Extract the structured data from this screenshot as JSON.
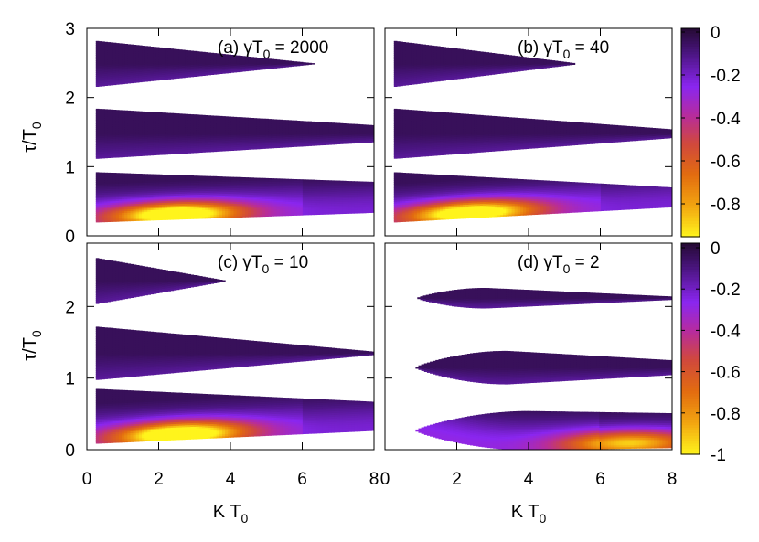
{
  "chart_data": [
    {
      "panel": "a",
      "type": "heatmap",
      "label_prefix": "(a) ",
      "label_symbol": "γT",
      "label_sub": "0",
      "label_suffix": " = 2000",
      "xlim": [
        0,
        8
      ],
      "ylim": [
        0,
        3
      ],
      "bands": [
        {
          "center": 2.49,
          "left_half": 0.33,
          "taper_end_x": 6.4,
          "fill_to_edge": false,
          "x_start": 0.25,
          "onset": "sharp"
        },
        {
          "center": 1.48,
          "left_half": 0.36,
          "right_half": 0.12,
          "fill_to_edge": true,
          "x_start": 0.25,
          "onset": "sharp"
        },
        {
          "center": 0.56,
          "left_half": 0.36,
          "right_half": 0.22,
          "fill_to_edge": true,
          "x_start": 0.25,
          "onset": "sharp",
          "hot_center_x": 2.5,
          "hot_min": -0.95
        }
      ]
    },
    {
      "panel": "b",
      "type": "heatmap",
      "label_prefix": "(b) ",
      "label_symbol": "γT",
      "label_sub": "0",
      "label_suffix": " = 40",
      "xlim": [
        0,
        8
      ],
      "ylim": [
        0,
        3
      ],
      "bands": [
        {
          "center": 2.49,
          "left_half": 0.33,
          "taper_end_x": 5.4,
          "fill_to_edge": false,
          "x_start": 0.25,
          "onset": "sharp"
        },
        {
          "center": 1.48,
          "left_half": 0.36,
          "right_half": 0.06,
          "fill_to_edge": true,
          "x_start": 0.25,
          "onset": "sharp"
        },
        {
          "center": 0.56,
          "left_half": 0.36,
          "right_half": 0.14,
          "fill_to_edge": true,
          "x_start": 0.25,
          "onset": "sharp",
          "hot_center_x": 2.4,
          "hot_min": -0.93
        }
      ]
    },
    {
      "panel": "c",
      "type": "heatmap",
      "label_prefix": "(c) ",
      "label_symbol": "γT",
      "label_sub": "0",
      "label_suffix": " = 10",
      "xlim": [
        0,
        8
      ],
      "ylim": [
        0,
        3
      ],
      "bands": [
        {
          "center": 2.36,
          "left_half": 0.32,
          "taper_end_x": 3.9,
          "fill_to_edge": false,
          "x_start": 0.25,
          "onset": "sharp"
        },
        {
          "center": 1.35,
          "left_half": 0.37,
          "right_half": 0.02,
          "fill_to_edge": true,
          "x_start": 0.25,
          "onset": "sharp"
        },
        {
          "center": 0.47,
          "left_half": 0.38,
          "right_half": 0.2,
          "fill_to_edge": true,
          "x_start": 0.25,
          "onset": "sharp",
          "hot_center_x": 2.6,
          "hot_min": -0.98
        }
      ]
    },
    {
      "panel": "d",
      "type": "heatmap",
      "label_prefix": "(d) ",
      "label_symbol": "γT",
      "label_sub": "0",
      "label_suffix": " = 2",
      "xlim": [
        0,
        8
      ],
      "ylim": [
        0,
        3
      ],
      "bands": [
        {
          "center": 2.12,
          "left_half": 0.0,
          "right_half": 0.02,
          "peak_half": 0.14,
          "peak_x": 2.8,
          "fill_to_edge": true,
          "x_start": 0.9,
          "onset": "smooth"
        },
        {
          "center": 1.15,
          "left_half": 0.0,
          "right_half": 0.1,
          "peak_half": 0.23,
          "peak_x": 3.4,
          "fill_to_edge": true,
          "x_start": 0.85,
          "onset": "smooth"
        },
        {
          "center": 0.27,
          "left_half": 0.0,
          "right_half": 0.24,
          "peak_half": 0.27,
          "peak_x": 4.0,
          "fill_to_edge": true,
          "x_start": 0.85,
          "onset": "smooth",
          "hot_center_x": 6.8,
          "hot_min": -0.7
        }
      ]
    }
  ],
  "axes": {
    "ylabel_symbol": "τ/T",
    "ylabel_sub": "0",
    "xlabel_main": "K T",
    "xlabel_sub": "0",
    "xticks": [
      "0",
      "2",
      "4",
      "6",
      "8"
    ],
    "yticks_top": [
      "0",
      "1",
      "2",
      "3"
    ],
    "yticks_bottom": [
      "0",
      "1",
      "2"
    ]
  },
  "colorbars": [
    {
      "ticks": [
        "0",
        "-0.2",
        "-0.4",
        "-0.6",
        "-0.8"
      ],
      "range": [
        -1,
        0
      ]
    },
    {
      "ticks": [
        "0",
        "-0.2",
        "-0.4",
        "-0.6",
        "-0.8",
        "-1"
      ],
      "range": [
        -1,
        0
      ]
    }
  ],
  "colormap": {
    "name": "gnuplot-pm3d-purple-orange-yellow",
    "stops": [
      {
        "v": 0.0,
        "color": "#250a33"
      },
      {
        "v": -0.12,
        "color": "#4a1580"
      },
      {
        "v": -0.28,
        "color": "#8a26f0"
      },
      {
        "v": -0.42,
        "color": "#b72c9c"
      },
      {
        "v": -0.55,
        "color": "#d0483e"
      },
      {
        "v": -0.7,
        "color": "#e26b10"
      },
      {
        "v": -0.85,
        "color": "#f2a410"
      },
      {
        "v": -1.0,
        "color": "#fff41c"
      }
    ]
  }
}
